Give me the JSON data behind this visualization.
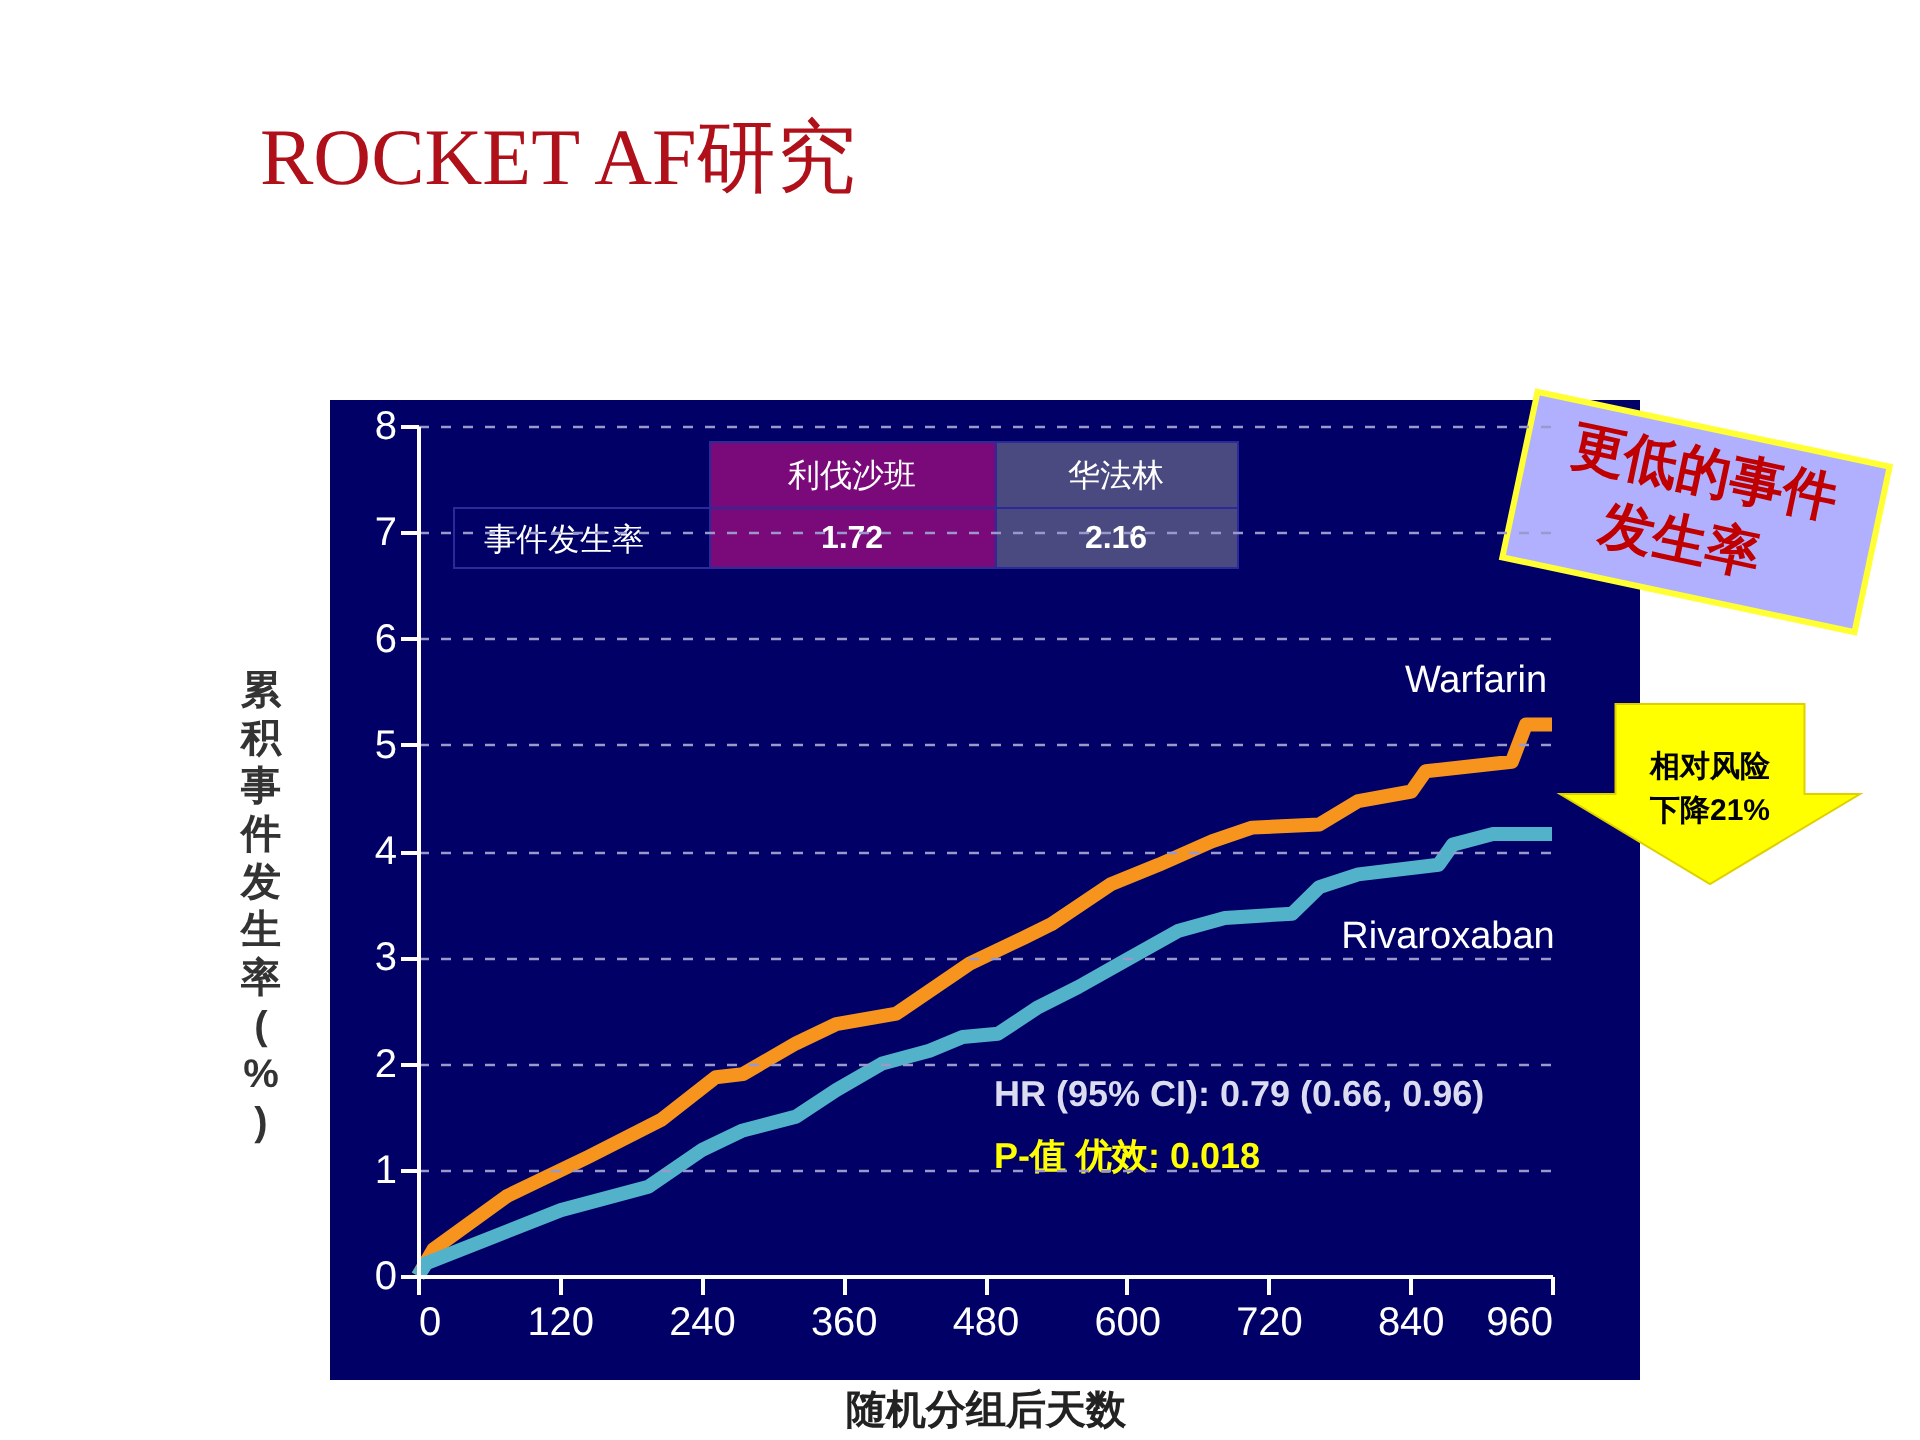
{
  "chart_data": {
    "type": "line",
    "title": "ROCKET AF研究",
    "xlabel": "随机分组后天数",
    "ylabel": "累积事件发生率(%)",
    "xlim": [
      0,
      960
    ],
    "xticks": [
      0,
      120,
      240,
      360,
      480,
      600,
      720,
      840,
      960
    ],
    "ylim": [
      0,
      8
    ],
    "yticks": [
      0,
      1,
      2,
      3,
      4,
      5,
      6,
      7,
      8
    ],
    "grid": "y",
    "line_style": "solid",
    "series": [
      {
        "name": "Warfarin",
        "color": "#f7941d",
        "x": [
          0,
          13,
          75,
          144,
          206,
          252,
          275,
          320,
          354,
          405,
          467,
          514,
          536,
          587,
          627,
          672,
          706,
          763,
          796,
          841,
          853,
          926,
          938,
          960
        ],
        "values": [
          0,
          0.25,
          0.75,
          1.12,
          1.47,
          1.87,
          1.9,
          2.19,
          2.37,
          2.47,
          2.94,
          3.19,
          3.31,
          3.69,
          3.87,
          4.09,
          4.22,
          4.25,
          4.47,
          4.56,
          4.75,
          4.84,
          5.19,
          5.19
        ]
      },
      {
        "name": "Rivaroxaban",
        "color": "#52b2c9",
        "x": [
          0,
          7,
          64,
          121,
          195,
          241,
          275,
          320,
          354,
          393,
          433,
          461,
          491,
          525,
          559,
          599,
          644,
          683,
          740,
          763,
          796,
          864,
          876,
          910,
          960
        ],
        "values": [
          0,
          0.12,
          0.37,
          0.62,
          0.84,
          1.19,
          1.37,
          1.5,
          1.75,
          2.0,
          2.12,
          2.25,
          2.28,
          2.53,
          2.72,
          2.97,
          3.25,
          3.37,
          3.41,
          3.66,
          3.78,
          3.87,
          4.06,
          4.16,
          4.16
        ]
      }
    ],
    "annotations": [
      "利伐沙班",
      "华法林",
      "事件发生率",
      "1.72",
      "2.16",
      "更低的事件发生率",
      "相对风险下降21%",
      "HR (95%  CI): 0.79 (0.66, 0.96)",
      "P-值 优效: 0.018"
    ]
  }
}
